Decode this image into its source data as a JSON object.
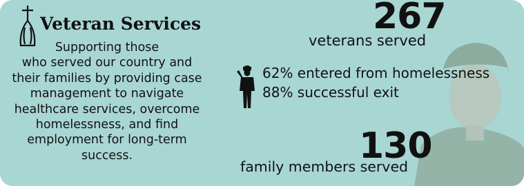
{
  "header": {
    "title": "Veteran Services"
  },
  "description": [
    "Supporting those",
    "who served our country and",
    "their families by providing case",
    "management to navigate",
    "healthcare services, overcome",
    "homelessness, and find",
    "employment for long-term",
    "success."
  ],
  "stats": [
    {
      "value": 267,
      "label": "veterans served"
    },
    {
      "value": 130,
      "label": "family members served"
    }
  ],
  "details": [
    "62% entered from homelessness",
    "88% successful exit"
  ]
}
